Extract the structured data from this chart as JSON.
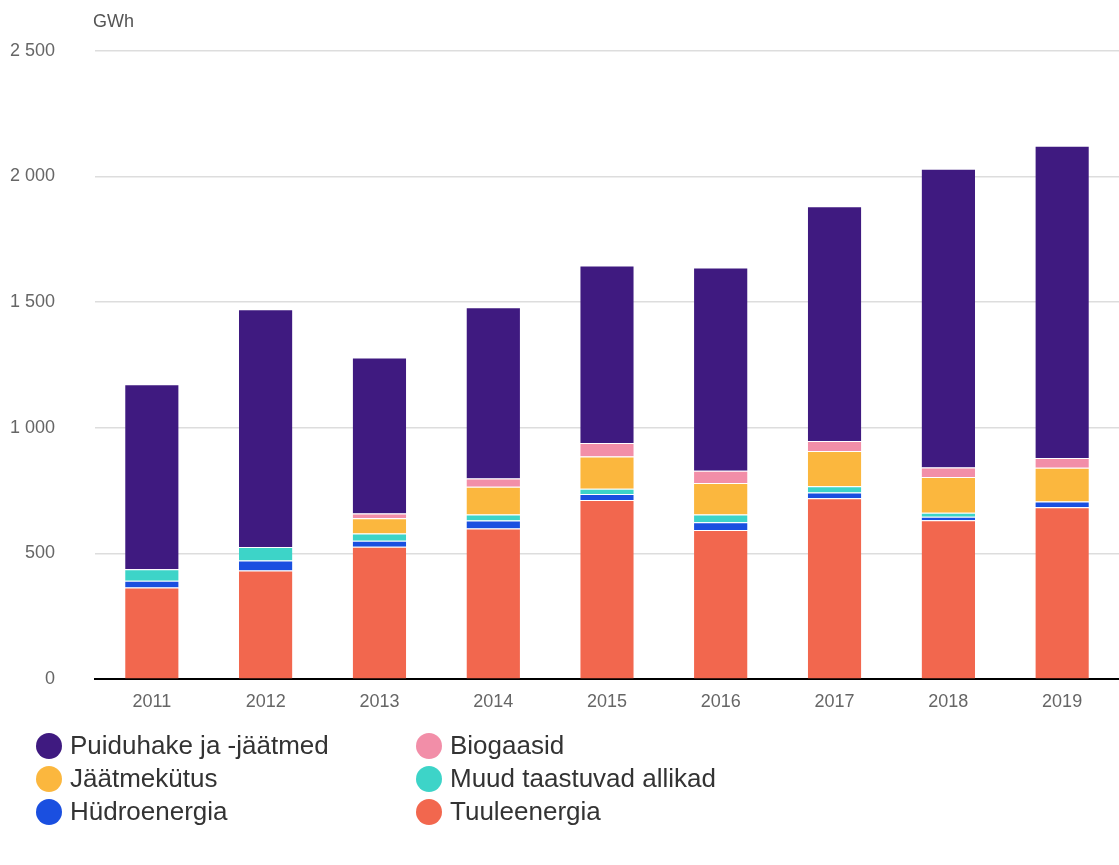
{
  "chart_data": {
    "type": "bar",
    "stacked": true,
    "ylabel": "GWh",
    "categories": [
      "2011",
      "2012",
      "2013",
      "2014",
      "2015",
      "2016",
      "2017",
      "2018",
      "2019"
    ],
    "series": [
      {
        "name": "Tuuleenergia",
        "color": "#f2674e",
        "values": [
          365,
          432,
          527,
          600,
          713,
          594,
          720,
          632,
          684
        ]
      },
      {
        "name": "Hüdroenergia",
        "color": "#1a4fe0",
        "values": [
          27,
          40,
          24,
          31,
          24,
          30,
          23,
          14,
          23
        ]
      },
      {
        "name": "Muud taastuvad allikad",
        "color": "#3dd4c8",
        "values": [
          45,
          54,
          29,
          24,
          21,
          31,
          25,
          16,
          0
        ]
      },
      {
        "name": "Jäätmekütus",
        "color": "#fbb73e",
        "values": [
          0,
          0,
          60,
          111,
          128,
          126,
          140,
          142,
          134
        ]
      },
      {
        "name": "Biogaasid",
        "color": "#f28ea8",
        "values": [
          0,
          0,
          19,
          32,
          54,
          48,
          40,
          38,
          39
        ]
      },
      {
        "name": "Puiduhake ja -jäätmed",
        "color": "#3f1a80",
        "values": [
          736,
          946,
          621,
          682,
          706,
          809,
          934,
          1189,
          1242
        ]
      }
    ],
    "ylim": [
      0,
      2500
    ],
    "yticks": [
      {
        "value": 0,
        "label": "0"
      },
      {
        "value": 500,
        "label": "500"
      },
      {
        "value": 1000,
        "label": "1 000"
      },
      {
        "value": 1500,
        "label": "1 500"
      },
      {
        "value": 2000,
        "label": "2 000"
      },
      {
        "value": 2500,
        "label": "2 500"
      }
    ],
    "grid": "y",
    "legend": "bottom"
  }
}
